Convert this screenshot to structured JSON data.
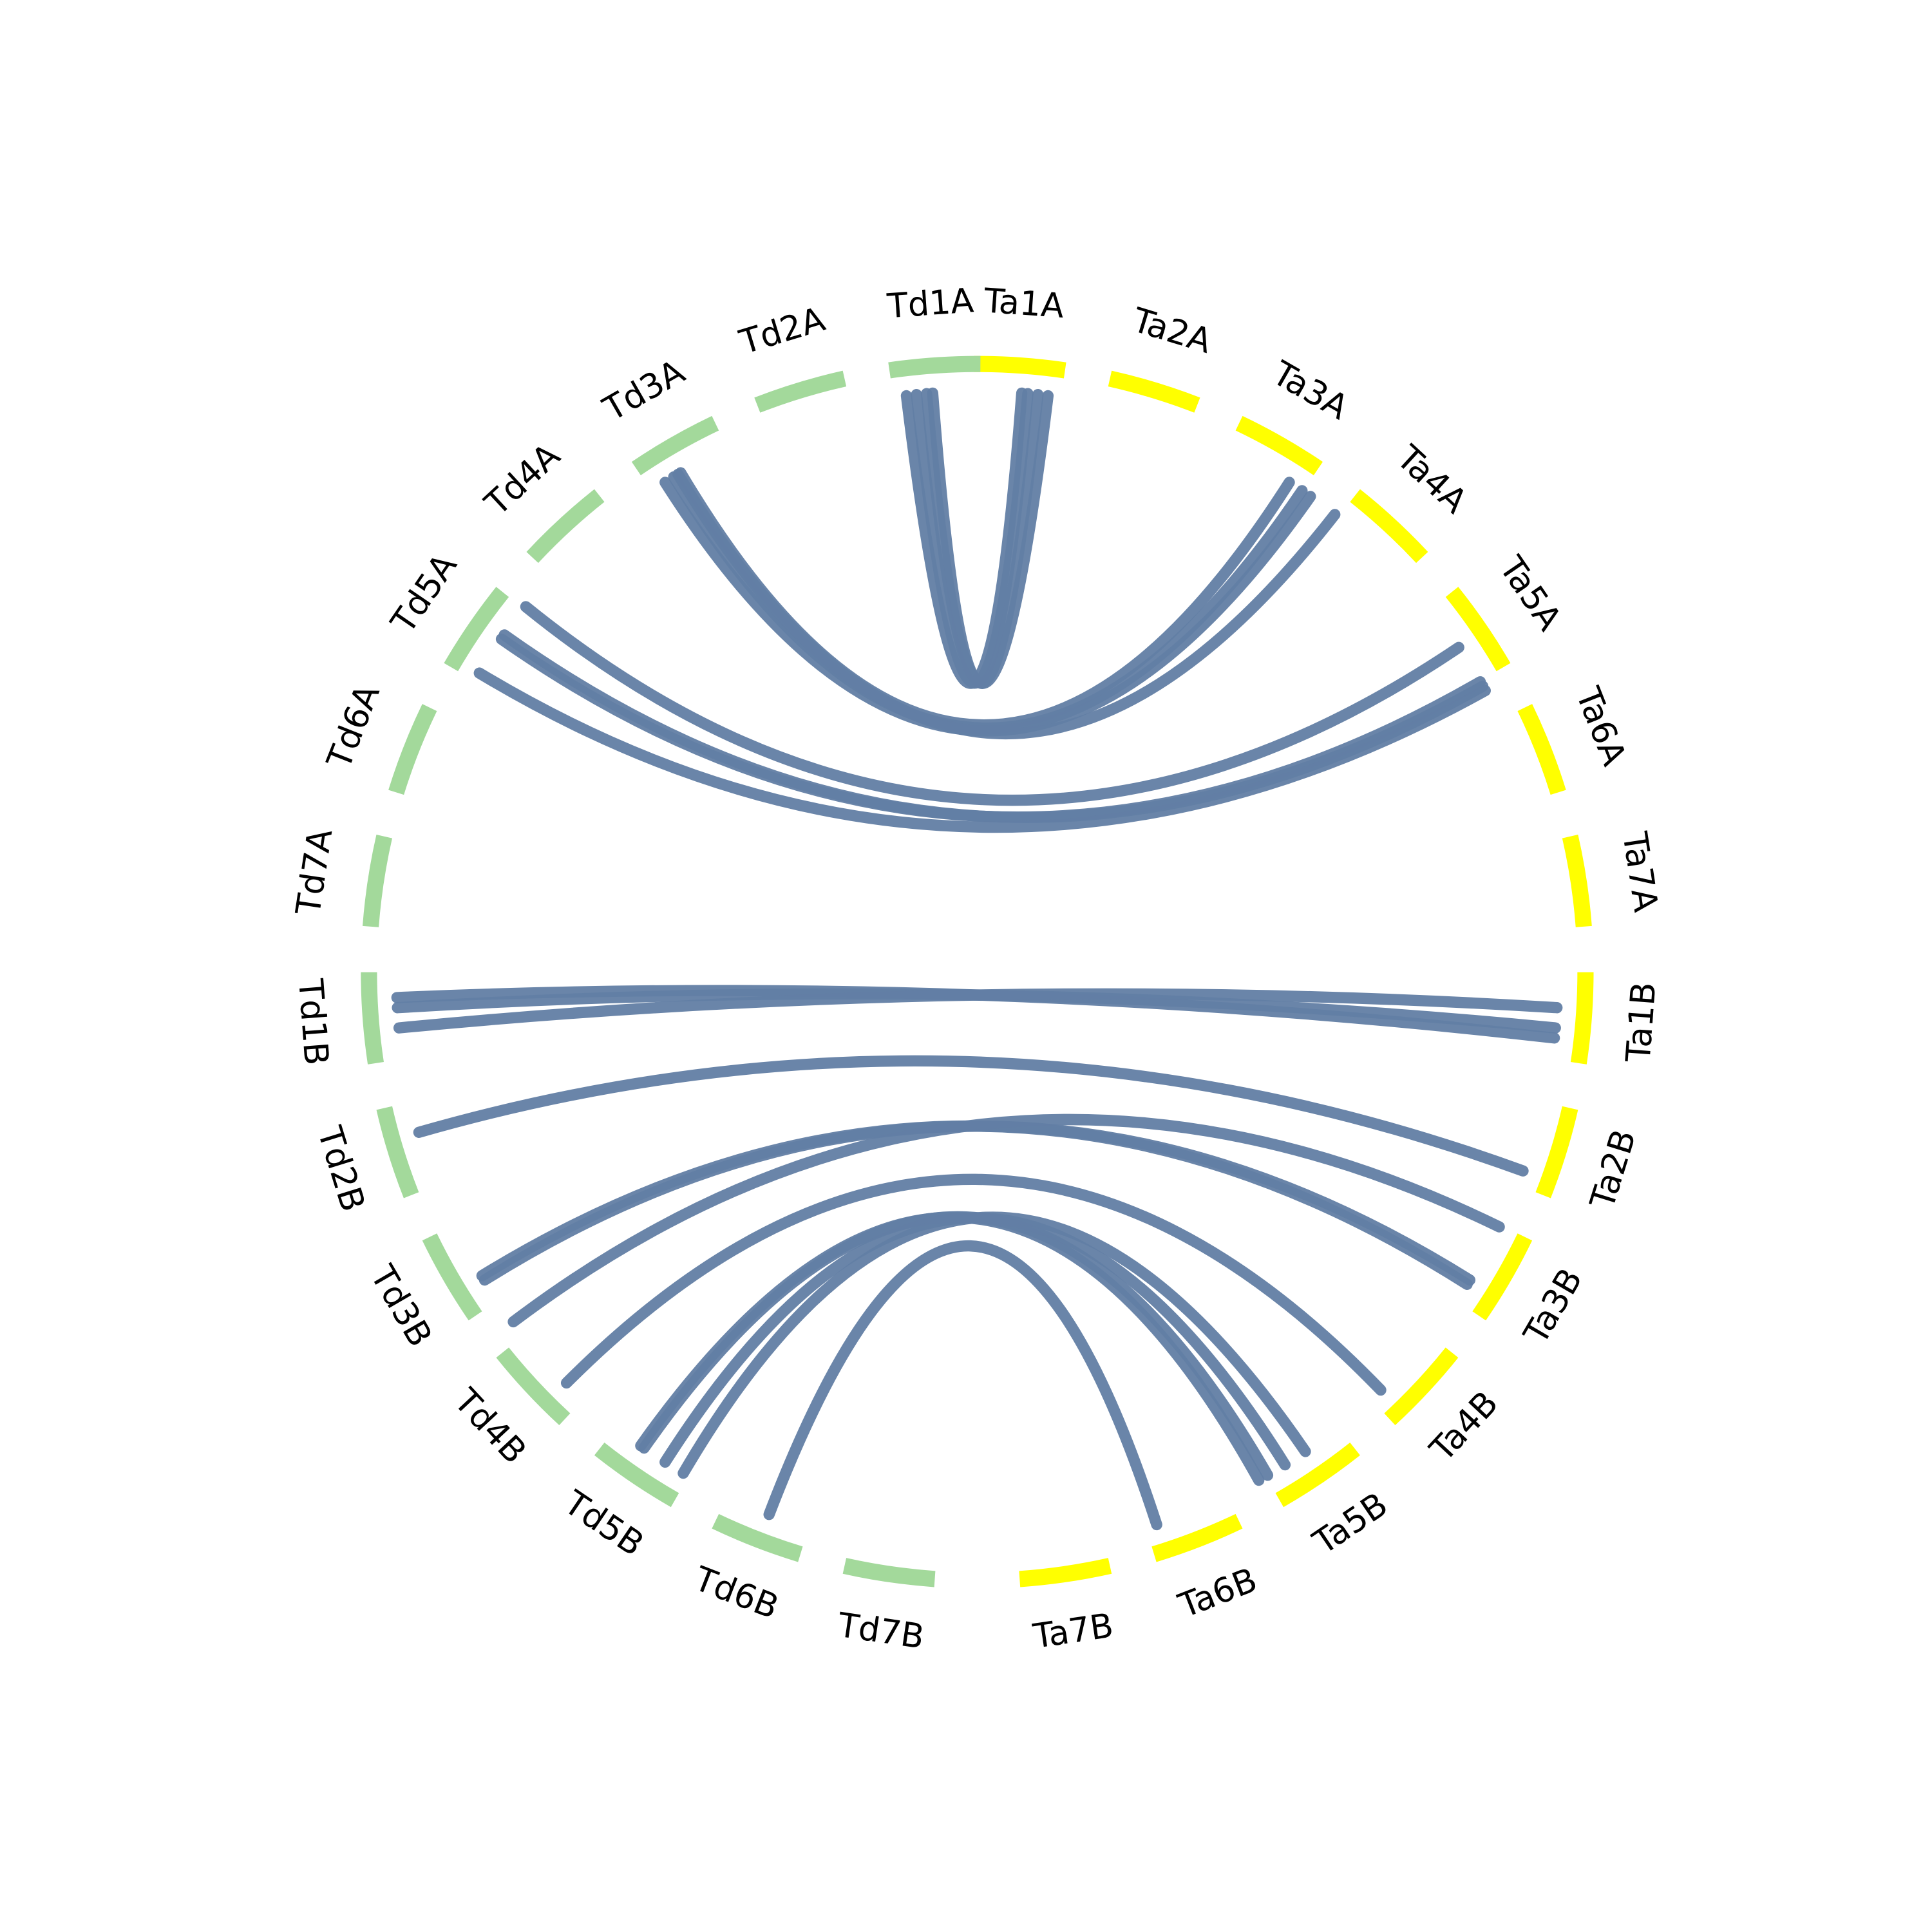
{
  "labels": [
    "Ta1A",
    "Ta2A",
    "Ta3A",
    "Ta4A",
    "Ta5A",
    "Ta6A",
    "Ta7A",
    "Ta1B",
    "Ta2B",
    "Ta3B",
    "Ta4B",
    "Ta5B",
    "Ta6B",
    "Ta7B",
    "Td1A",
    "Td2A",
    "Td3A",
    "Td4A",
    "Td5A",
    "Td6A",
    "Td7A",
    "Td1B",
    "Td2B",
    "Td3B",
    "Td4B",
    "Td5B",
    "Td6B",
    "Td7B"
  ]
}
